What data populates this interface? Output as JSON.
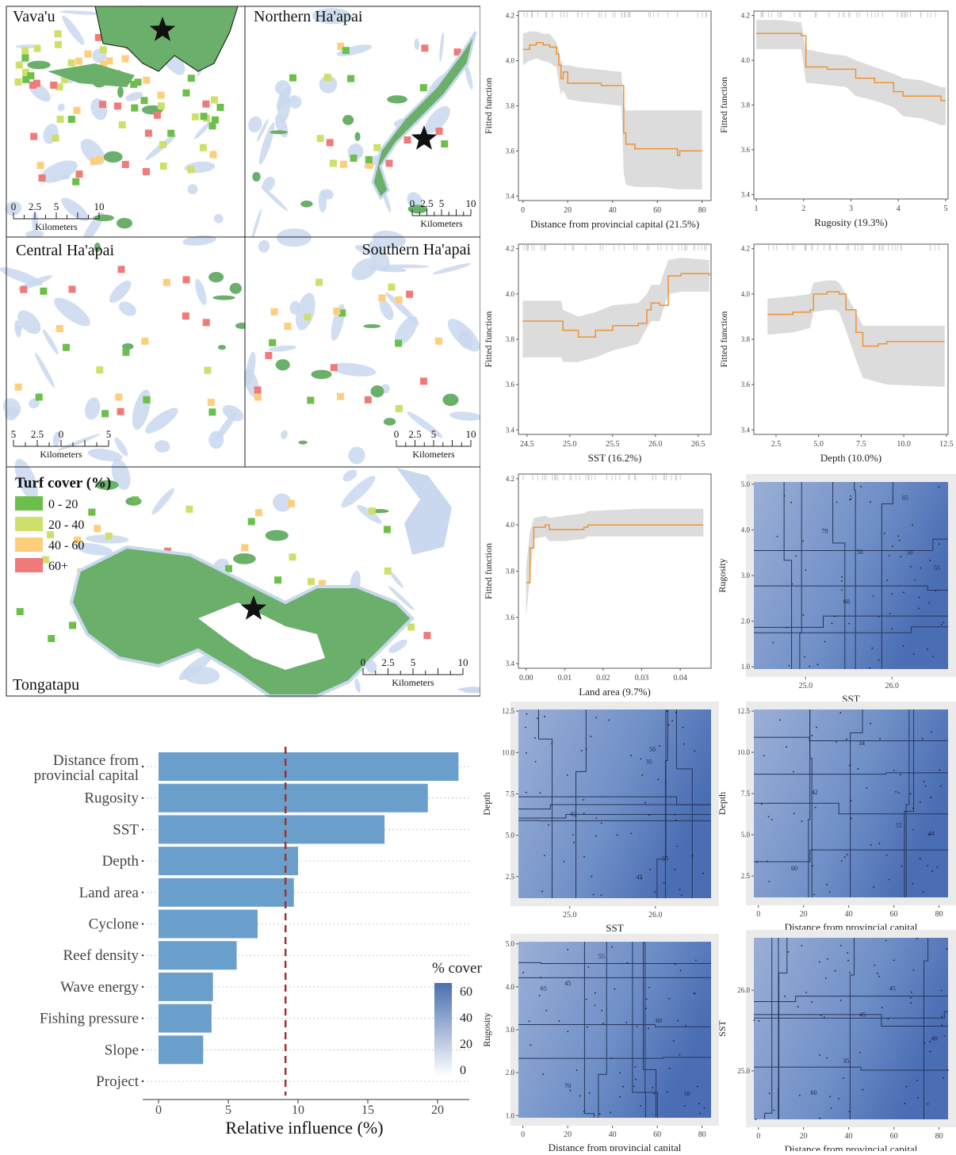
{
  "maps": {
    "panels": [
      {
        "title": "Vava'u",
        "scale_ticks": [
          "0",
          "2.5",
          "5",
          "10"
        ],
        "scale_unit": "Kilometers"
      },
      {
        "title": "Northern Ha'apai",
        "scale_ticks": [
          "0",
          "2.5",
          "5",
          "10"
        ],
        "scale_unit": "Kilometers"
      },
      {
        "title": "Central Ha'apai",
        "scale_ticks": [
          "5",
          "2.5",
          "0",
          "5"
        ],
        "scale_unit": "Kilometers"
      },
      {
        "title": "Southern Ha'apai",
        "scale_ticks": [
          "0",
          "2.5",
          "5",
          "10"
        ],
        "scale_unit": "Kilometers"
      },
      {
        "title": "Tongatapu",
        "scale_ticks": [
          "0",
          "2.5",
          "5",
          "10"
        ],
        "scale_unit": "Kilometers"
      }
    ],
    "legend": {
      "title": "Turf cover (%)",
      "items": [
        {
          "label": "0 - 20",
          "color": "#6cbf4a"
        },
        {
          "label": "20 - 40",
          "color": "#cde06a"
        },
        {
          "label": "40 - 60",
          "color": "#fdcf7d"
        },
        {
          "label": "60+",
          "color": "#f07a7a"
        }
      ]
    },
    "colors": {
      "water": "#c9d8ef",
      "land": "#6aaf6a"
    }
  },
  "chart_data": [
    {
      "type": "bar",
      "orientation": "horizontal",
      "categories": [
        "Distance from provincial capital",
        "Rugosity",
        "SST",
        "Depth",
        "Land area",
        "Cyclone",
        "Reef density",
        "Wave energy",
        "Fishing pressure",
        "Slope",
        "Project"
      ],
      "values": [
        21.5,
        19.3,
        16.2,
        10.0,
        9.7,
        7.1,
        5.6,
        3.9,
        3.8,
        3.2,
        0.0
      ],
      "xlabel": "Relative influence (%)",
      "xlim": [
        0,
        22
      ],
      "xticks": [
        "0",
        "5",
        "10",
        "15",
        "20"
      ],
      "reference_line": 9.1,
      "bar_color": "#6a9fcc",
      "line_color": "#a03030"
    },
    {
      "type": "line",
      "xlabel": "Distance from provincial capital (21.5%)",
      "ylabel": "Fitted function",
      "ylim": [
        3.38,
        4.22
      ],
      "yticks": [
        3.4,
        3.6,
        3.8,
        4.0,
        4.2
      ],
      "xlim": [
        -2,
        84
      ],
      "xticks": [
        0,
        20,
        40,
        60,
        80
      ],
      "x": [
        0,
        3,
        6,
        9,
        12,
        15,
        16,
        17,
        18,
        20,
        25,
        35,
        44,
        45,
        46,
        50,
        60,
        69,
        70,
        75,
        80
      ],
      "y": [
        4.05,
        4.07,
        4.08,
        4.07,
        4.06,
        4.03,
        3.98,
        3.92,
        3.95,
        3.9,
        3.9,
        3.89,
        3.89,
        3.68,
        3.63,
        3.61,
        3.61,
        3.58,
        3.6,
        3.6,
        3.6
      ],
      "upper": [
        4.12,
        4.13,
        4.13,
        4.12,
        4.12,
        4.08,
        4.05,
        4.0,
        3.98,
        3.98,
        3.97,
        3.96,
        3.95,
        3.8,
        3.78,
        3.78,
        3.78,
        3.78,
        3.78,
        3.78,
        3.78
      ],
      "lower": [
        3.98,
        4.0,
        4.01,
        4.0,
        3.99,
        3.97,
        3.9,
        3.85,
        3.87,
        3.83,
        3.82,
        3.81,
        3.8,
        3.5,
        3.45,
        3.44,
        3.44,
        3.43,
        3.43,
        3.43,
        3.43
      ]
    },
    {
      "type": "line",
      "xlabel": "Rugosity (19.3%)",
      "ylabel": "Fitted function",
      "ylim": [
        3.38,
        4.22
      ],
      "yticks": [
        3.4,
        3.6,
        3.8,
        4.0,
        4.2
      ],
      "xlim": [
        0.95,
        5.05
      ],
      "xticks": [
        1,
        2,
        3,
        4,
        5
      ],
      "x": [
        1.0,
        1.5,
        1.95,
        2.05,
        2.5,
        2.9,
        3.1,
        3.5,
        3.9,
        4.1,
        4.5,
        4.9,
        5.0
      ],
      "y": [
        4.12,
        4.12,
        4.11,
        3.97,
        3.96,
        3.96,
        3.92,
        3.9,
        3.86,
        3.84,
        3.84,
        3.82,
        3.82
      ],
      "upper": [
        4.18,
        4.18,
        4.17,
        4.05,
        4.03,
        4.02,
        4.0,
        3.97,
        3.94,
        3.92,
        3.91,
        3.88,
        3.88
      ],
      "lower": [
        4.05,
        4.05,
        4.05,
        3.9,
        3.89,
        3.88,
        3.84,
        3.82,
        3.79,
        3.75,
        3.74,
        3.71,
        3.71
      ]
    },
    {
      "type": "line",
      "xlabel": "SST (16.2%)",
      "ylabel": "Fitted function",
      "ylim": [
        3.38,
        4.22
      ],
      "yticks": [
        3.4,
        3.6,
        3.8,
        4.0,
        4.2
      ],
      "xlim": [
        24.4,
        26.65
      ],
      "xticks": [
        24.5,
        25.0,
        25.5,
        26.0,
        26.5
      ],
      "x": [
        24.45,
        24.9,
        24.92,
        25.1,
        25.3,
        25.5,
        25.8,
        25.9,
        25.95,
        26.05,
        26.15,
        26.3,
        26.63
      ],
      "y": [
        3.88,
        3.88,
        3.84,
        3.81,
        3.84,
        3.86,
        3.87,
        3.93,
        3.96,
        3.95,
        4.08,
        4.09,
        4.08
      ],
      "upper": [
        3.97,
        3.97,
        3.93,
        3.9,
        3.92,
        3.95,
        3.96,
        4.0,
        4.04,
        4.04,
        4.15,
        4.16,
        4.15
      ],
      "lower": [
        3.72,
        3.72,
        3.7,
        3.7,
        3.72,
        3.75,
        3.78,
        3.85,
        3.88,
        3.88,
        4.0,
        4.01,
        4.01
      ]
    },
    {
      "type": "line",
      "xlabel": "Depth (10.0%)",
      "ylabel": "Fitted function",
      "ylim": [
        3.38,
        4.22
      ],
      "yticks": [
        3.4,
        3.6,
        3.8,
        4.0,
        4.2
      ],
      "xlim": [
        1.2,
        12.6
      ],
      "xticks": [
        2.5,
        5.0,
        7.5,
        10.0,
        12.5
      ],
      "x": [
        2.0,
        3.5,
        4.5,
        4.7,
        5.5,
        6.0,
        6.2,
        6.6,
        7.2,
        7.6,
        8.5,
        9.0,
        12.4
      ],
      "y": [
        3.91,
        3.92,
        3.93,
        4.0,
        4.01,
        4.01,
        4.0,
        3.93,
        3.83,
        3.77,
        3.78,
        3.79,
        3.79
      ],
      "upper": [
        3.98,
        3.99,
        4.0,
        4.05,
        4.06,
        4.06,
        4.05,
        4.0,
        3.92,
        3.86,
        3.86,
        3.86,
        3.86
      ],
      "lower": [
        3.82,
        3.83,
        3.85,
        3.92,
        3.93,
        3.93,
        3.92,
        3.84,
        3.71,
        3.63,
        3.61,
        3.6,
        3.59
      ]
    },
    {
      "type": "line",
      "xlabel": "Land area (9.7%)",
      "ylabel": "Fitted function",
      "ylim": [
        3.38,
        4.22
      ],
      "yticks": [
        3.4,
        3.6,
        3.8,
        4.0,
        4.2
      ],
      "xlim": [
        -0.002,
        0.048
      ],
      "xticks": [
        0.0,
        0.01,
        0.02,
        0.03,
        0.04
      ],
      "xtick_labels": [
        "0.00",
        "0.01",
        "0.02",
        "0.03",
        "0.04"
      ],
      "x": [
        0.0,
        0.001,
        0.002,
        0.005,
        0.006,
        0.01,
        0.015,
        0.016,
        0.03,
        0.046
      ],
      "y": [
        3.75,
        3.9,
        3.99,
        4.0,
        3.98,
        3.98,
        3.99,
        4.0,
        4.0,
        4.0
      ],
      "upper": [
        3.82,
        3.97,
        4.03,
        4.04,
        4.03,
        4.04,
        4.05,
        4.06,
        4.07,
        4.07
      ],
      "lower": [
        3.6,
        3.78,
        3.94,
        3.95,
        3.93,
        3.93,
        3.94,
        3.95,
        3.95,
        3.95
      ]
    },
    {
      "type": "heatmap",
      "xlabel": "SST",
      "ylabel": "Rugosity",
      "xlim": [
        24.4,
        26.65
      ],
      "ylim": [
        0.95,
        5.05
      ],
      "xticks": [
        25.0,
        26.0
      ],
      "xtick_labels": [
        "25.0",
        "26.0"
      ],
      "yticks": [
        1,
        2,
        3,
        4,
        5
      ],
      "contour_labels": [
        "50",
        "55",
        "60",
        "65",
        "70",
        "50"
      ]
    },
    {
      "type": "heatmap",
      "xlabel": "SST",
      "ylabel": "Depth",
      "xlim": [
        24.4,
        26.65
      ],
      "ylim": [
        1.2,
        12.6
      ],
      "xticks": [
        25.0,
        26.0
      ],
      "xtick_labels": [
        "25.0",
        "26.0"
      ],
      "yticks": [
        2.5,
        5.0,
        7.5,
        10.0,
        12.5
      ],
      "ytick_labels": [
        "2.5",
        "5.0",
        "7.5",
        "10.0",
        "12.5"
      ],
      "contour_labels": [
        "35",
        "45",
        "50",
        "55",
        "62"
      ]
    },
    {
      "type": "heatmap",
      "xlabel": "Distance from provincial capital",
      "ylabel": "Depth",
      "xlim": [
        -2,
        84
      ],
      "ylim": [
        1.2,
        12.6
      ],
      "xticks": [
        0,
        20,
        40,
        60,
        80
      ],
      "yticks": [
        2.5,
        5.0,
        7.5,
        10.0,
        12.5
      ],
      "ytick_labels": [
        "2.5",
        "5.0",
        "7.5",
        "10.0",
        "12.5"
      ],
      "contour_labels": [
        "34",
        "42",
        "44",
        "55",
        "60"
      ]
    },
    {
      "type": "heatmap",
      "xlabel": "Distance from provincial capital",
      "ylabel": "Rugosity",
      "xlim": [
        -2,
        84
      ],
      "ylim": [
        0.95,
        5.05
      ],
      "xticks": [
        0,
        20,
        40,
        60,
        80
      ],
      "yticks": [
        1,
        2,
        3,
        4,
        5
      ],
      "contour_labels": [
        "55",
        "50",
        "45",
        "60",
        "65",
        "70"
      ]
    },
    {
      "type": "heatmap",
      "xlabel": "Distance from provincial capital",
      "ylabel": "SST",
      "xlim": [
        -2,
        84
      ],
      "ylim": [
        24.4,
        26.65
      ],
      "xticks": [
        0,
        20,
        40,
        60,
        80
      ],
      "yticks": [
        25.0,
        26.0
      ],
      "ytick_labels": [
        "25.0",
        "26.0"
      ],
      "contour_labels": [
        "60",
        "45",
        "35",
        "45",
        "40"
      ]
    }
  ],
  "colorbar": {
    "title": "% cover",
    "ticks": [
      "60",
      "40",
      "20",
      "0"
    ],
    "color_high": "#4a6fb0",
    "color_low": "#ffffff"
  }
}
